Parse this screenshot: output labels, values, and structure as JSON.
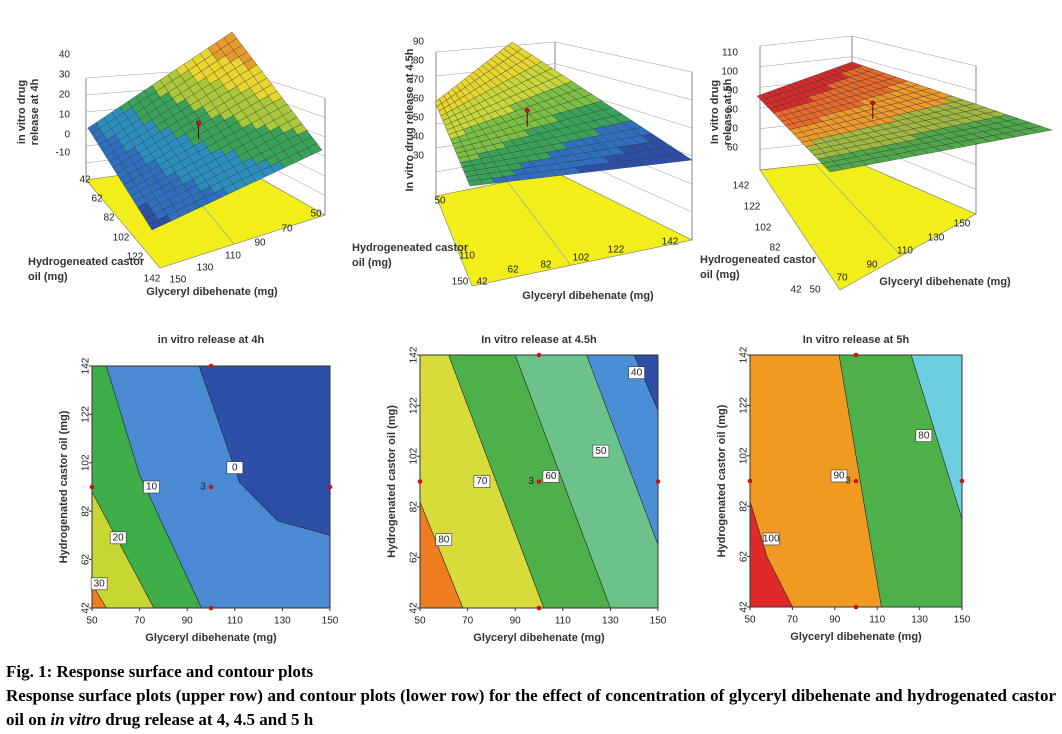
{
  "surface_plots": [
    {
      "z_label": [
        "in vitro drug",
        "release at 4h"
      ],
      "z_ticks": [
        "40",
        "30",
        "20",
        "10",
        "0",
        "-10"
      ],
      "y_label": [
        "Hydrogeneated castor",
        "oil (mg)"
      ],
      "y_ticks": [
        "42",
        "62",
        "82",
        "102",
        "122",
        "142"
      ],
      "x_label": "Glyceryl dibehenate (mg)",
      "x_ticks": [
        "150",
        "130",
        "110",
        "90",
        "70",
        "50"
      ]
    },
    {
      "z_label": [
        "In vitro drug release at 4.5h"
      ],
      "z_ticks": [
        "90",
        "80",
        "70",
        "60",
        "50",
        "40",
        "30"
      ],
      "y_label": [
        "Hydrogeneated castor",
        "oil (mg)"
      ],
      "y_ticks": [
        "50",
        "110",
        "150"
      ],
      "x_label": "Glyceryl dibehenate (mg)",
      "x_ticks": [
        "42",
        "62",
        "82",
        "102",
        "122",
        "142"
      ]
    },
    {
      "z_label": [
        "In vitro drug",
        "release at 5h"
      ],
      "z_ticks": [
        "110",
        "100",
        "90",
        "80",
        "70",
        "60"
      ],
      "y_label": [
        "Hydrogeneated castor",
        "oil (mg)"
      ],
      "y_ticks": [
        "142",
        "122",
        "102",
        "82",
        "42"
      ],
      "x_label": "Glyceryl dibehenate (mg)",
      "x_ticks": [
        "50",
        "70",
        "90",
        "110",
        "130",
        "150"
      ]
    }
  ],
  "contour_plots": [
    {
      "title": "in vitro release at 4h",
      "x_label": "Glyceryl dibehenate (mg)",
      "y_label": "Hydrogenated castor oil (mg)",
      "xticks": [
        50,
        70,
        90,
        110,
        130,
        150
      ],
      "yticks": [
        42,
        62,
        82,
        102,
        122,
        142
      ],
      "contour_labels": [
        "0",
        "10",
        "20",
        "30"
      ],
      "center_label": "3"
    },
    {
      "title": "In vitro release at 4.5h",
      "x_label": "Glyceryl dibehenate (mg)",
      "y_label": "Hydrogenated castor oil (mg)",
      "xticks": [
        50,
        70,
        90,
        110,
        130,
        150
      ],
      "yticks": [
        42,
        62,
        82,
        102,
        122,
        142
      ],
      "contour_labels": [
        "80",
        "70",
        "60",
        "50",
        "40"
      ],
      "center_label": "3"
    },
    {
      "title": "In vitro release at 5h",
      "x_label": "Glyceryl dibehenate (mg)",
      "y_label": "Hydrogenated castor oil (mg)",
      "xticks": [
        50,
        70,
        90,
        110,
        130,
        150
      ],
      "yticks": [
        42,
        62,
        82,
        102,
        122,
        142
      ],
      "contour_labels": [
        "100",
        "90",
        "80"
      ],
      "center_label": "3"
    }
  ],
  "caption": {
    "title": "Fig. 1: Response surface and contour plots",
    "text_before": "Response surface plots (upper row) and contour plots (lower row) for the effect of concentration of glyceryl dibehenate and hydrogenated castor oil on",
    "italic": "in vitro",
    "text_after": "drug release at 4, 4.5 and 5 h"
  }
}
